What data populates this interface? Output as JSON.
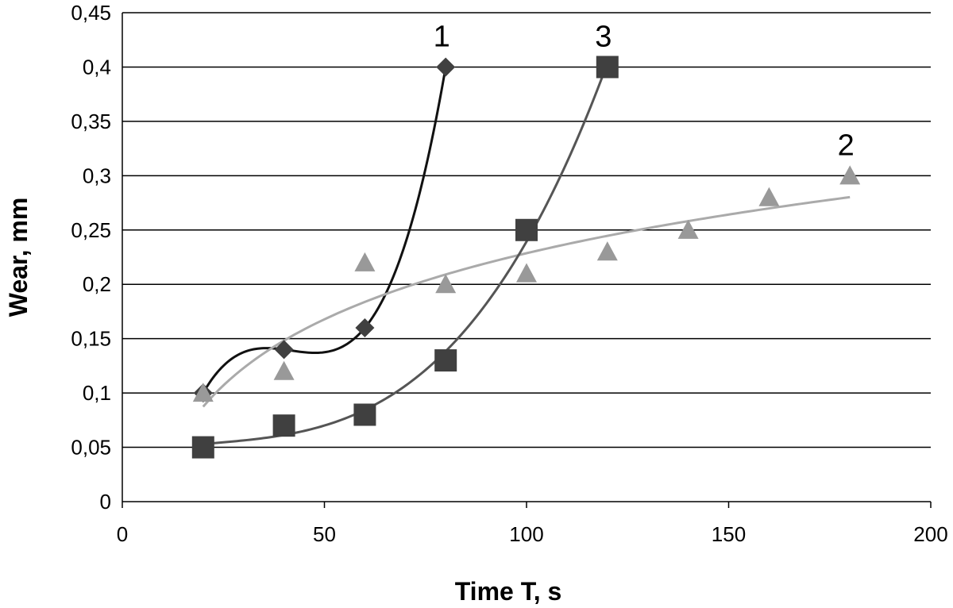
{
  "chart_data": {
    "type": "scatter",
    "xlabel": "Time T, s",
    "ylabel": "Wear, mm",
    "xlim": [
      0,
      200
    ],
    "ylim": [
      0,
      0.45
    ],
    "x_ticks": [
      "0",
      "50",
      "100",
      "150",
      "200"
    ],
    "y_ticks": [
      "0",
      "0,05",
      "0,1",
      "0,15",
      "0,2",
      "0,25",
      "0,3",
      "0,35",
      "0,4",
      "0,45"
    ],
    "grid": "horizontal",
    "series": [
      {
        "label": "1",
        "marker": "diamond",
        "color": "#404040",
        "line_color": "#111111",
        "points": [
          [
            20,
            0.1
          ],
          [
            40,
            0.14
          ],
          [
            60,
            0.16
          ],
          [
            80,
            0.4
          ]
        ]
      },
      {
        "label": "2",
        "marker": "triangle",
        "color": "#999999",
        "line_color": "#aaaaaa",
        "points": [
          [
            20,
            0.1
          ],
          [
            40,
            0.12
          ],
          [
            60,
            0.22
          ],
          [
            80,
            0.2
          ],
          [
            100,
            0.21
          ],
          [
            120,
            0.23
          ],
          [
            140,
            0.25
          ],
          [
            160,
            0.28
          ],
          [
            180,
            0.3
          ]
        ]
      },
      {
        "label": "3",
        "marker": "square",
        "color": "#404040",
        "line_color": "#555555",
        "points": [
          [
            20,
            0.05
          ],
          [
            40,
            0.07
          ],
          [
            60,
            0.08
          ],
          [
            80,
            0.13
          ],
          [
            100,
            0.25
          ],
          [
            120,
            0.4
          ]
        ]
      }
    ]
  }
}
